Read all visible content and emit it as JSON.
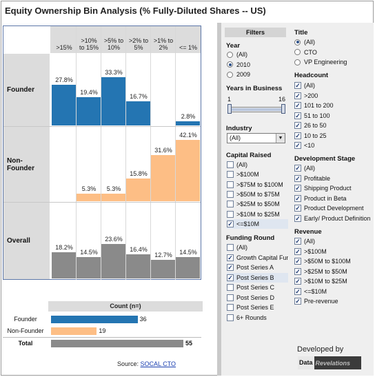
{
  "title": "Equity Ownership Bin Analysis (% Fully-Diluted Shares -- US)",
  "colors": {
    "founder": "#2475b2",
    "non_founder": "#fdbe85",
    "overall": "#8a8a8a"
  },
  "chart_data": [
    {
      "type": "bar",
      "categories": [
        ">15%",
        ">10%\nto 15%",
        ">5% to\n10%",
        ">2% to\n5%",
        ">1% to\n2%",
        "<= 1%"
      ],
      "series": [
        {
          "name": "Founder",
          "values": [
            27.8,
            19.4,
            33.3,
            16.7,
            0,
            2.8
          ],
          "labels": [
            "27.8%",
            "19.4%",
            "33.3%",
            "16.7%",
            "",
            "2.8%"
          ]
        },
        {
          "name": "Non-Founder",
          "values": [
            0,
            5.3,
            5.3,
            15.8,
            31.6,
            42.1
          ],
          "labels": [
            "",
            "5.3%",
            "5.3%",
            "15.8%",
            "31.6%",
            "42.1%"
          ]
        },
        {
          "name": "Overall",
          "values": [
            18.2,
            14.5,
            23.6,
            16.4,
            12.7,
            14.5
          ],
          "labels": [
            "18.2%",
            "14.5%",
            "23.6%",
            "16.4%",
            "12.7%",
            "14.5%"
          ]
        }
      ],
      "ylim": [
        0,
        45
      ]
    },
    {
      "type": "bar",
      "title": "Count (n=)",
      "categories": [
        "Founder",
        "Non-Founder",
        "Total"
      ],
      "values": [
        36,
        19,
        55
      ],
      "xlim": [
        0,
        55
      ]
    }
  ],
  "source": {
    "label": "Source:",
    "link": "SOCAL CTO"
  },
  "filters": {
    "title": "Filters",
    "year": {
      "heading": "Year",
      "options": [
        "(All)",
        "2010",
        "2009"
      ],
      "selected": 1
    },
    "years_in_business": {
      "heading": "Years in Business",
      "min_label": "1",
      "max_label": "16",
      "min": 1,
      "max": 16
    },
    "industry": {
      "heading": "Industry",
      "value": "(All)"
    },
    "capital_raised": {
      "heading": "Capital  Raised",
      "options": [
        "(All)",
        ">$100M",
        ">$75M to $100M",
        ">$50M to $75M",
        ">$25M to $50M",
        ">$10M to $25M",
        "<=$10M"
      ],
      "checked": [
        false,
        false,
        false,
        false,
        false,
        false,
        true
      ]
    },
    "funding_round": {
      "heading": "Funding  Round",
      "options": [
        "(All)",
        "Growth Capital Fun",
        "Post Series A",
        "Post Series B",
        "Post Series C",
        "Post Series D",
        "Post Series E",
        "6+ Rounds"
      ],
      "checked": [
        false,
        true,
        true,
        true,
        false,
        false,
        false,
        false
      ]
    },
    "title_filter": {
      "heading": "Title",
      "options": [
        "(All)",
        "CTO",
        "VP Engineering"
      ],
      "selected": 0
    },
    "headcount": {
      "heading": "Headcount",
      "options": [
        "(All)",
        ">200",
        "101 to 200",
        "51 to 100",
        "26 to 50",
        "10 to 25",
        "<10"
      ],
      "checked": [
        true,
        true,
        true,
        true,
        true,
        true,
        true
      ]
    },
    "development_stage": {
      "heading": "Development  Stage",
      "options": [
        "(All)",
        "Profitable",
        "Shipping Product",
        "Product in Beta",
        "Product Development",
        "Early/ Product Definition"
      ],
      "checked": [
        true,
        true,
        true,
        true,
        true,
        true
      ]
    },
    "revenue": {
      "heading": "Revenue",
      "options": [
        "(All)",
        ">$100M",
        ">$50M to $100M",
        ">$25M to $50M",
        ">$10M to $25M",
        "<=$10M",
        "Pre-revenue"
      ],
      "checked": [
        true,
        true,
        true,
        true,
        true,
        true,
        true
      ]
    }
  },
  "branding": {
    "developed_by": "Developed by",
    "logo_part1": "Data",
    "logo_part2": "Revelations"
  }
}
